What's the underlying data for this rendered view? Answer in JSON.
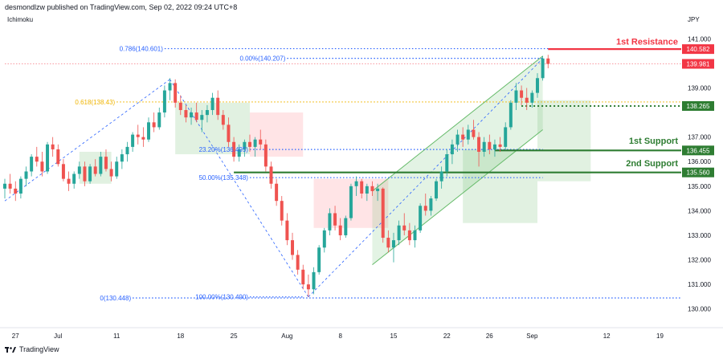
{
  "header": {
    "published": "desmondlzw published on TradingView.com, Sep 02, 2022 09:24 UTC+8"
  },
  "indicator": {
    "label": "Ichimoku"
  },
  "footer": {
    "brand": "TradingView"
  },
  "colors": {
    "up": "#26a69a",
    "down": "#ef5350",
    "resistance": "#f23645",
    "support": "#2e7d32",
    "fib": "#2962ff",
    "fib618": "#f0b400",
    "channel": "#66bb6a",
    "cloud_green": "#c8e6c9",
    "cloud_red": "#ffcdd2"
  },
  "chart_data": {
    "type": "candlestick",
    "symbol_unit": "JPY",
    "ylim": [
      129.5,
      141.6
    ],
    "xlim": [
      0,
      127
    ],
    "x_ticks": [
      {
        "label": "27",
        "x": 2
      },
      {
        "label": "Jul",
        "x": 10
      },
      {
        "label": "11",
        "x": 21
      },
      {
        "label": "18",
        "x": 33
      },
      {
        "label": "25",
        "x": 43
      },
      {
        "label": "Aug",
        "x": 53
      },
      {
        "label": "8",
        "x": 63
      },
      {
        "label": "15",
        "x": 73
      },
      {
        "label": "22",
        "x": 83
      },
      {
        "label": "26",
        "x": 91
      },
      {
        "label": "Sep",
        "x": 99
      },
      {
        "label": "12",
        "x": 113
      },
      {
        "label": "19",
        "x": 123
      }
    ],
    "y_ticks": [
      {
        "label": "141.000",
        "value": 141.0
      },
      {
        "label": "139.000",
        "value": 139.0
      },
      {
        "label": "137.000",
        "value": 137.0
      },
      {
        "label": "136.000",
        "value": 136.0
      },
      {
        "label": "135.000",
        "value": 135.0
      },
      {
        "label": "134.000",
        "value": 134.0
      },
      {
        "label": "133.000",
        "value": 133.0
      },
      {
        "label": "132.000",
        "value": 132.0
      },
      {
        "label": "131.000",
        "value": 131.0
      },
      {
        "label": "130.000",
        "value": 130.0
      }
    ],
    "price_tags": [
      {
        "label": "140.582",
        "value": 140.582,
        "color": "#f23645"
      },
      {
        "label": "139.981",
        "value": 139.981,
        "color": "#f23645"
      },
      {
        "label": "138.265",
        "value": 138.265,
        "color": "#2e7d32"
      },
      {
        "label": "136.455",
        "value": 136.455,
        "color": "#2e7d32"
      },
      {
        "label": "135.560",
        "value": 135.56,
        "color": "#2e7d32"
      }
    ],
    "levels": [
      {
        "name": "1st Resistance",
        "value": 140.582,
        "style": "solid",
        "color": "#f23645",
        "x0": 102
      },
      {
        "name": "1st Support",
        "value": 136.455,
        "style": "solid",
        "color": "#2e7d32",
        "x0": 92
      },
      {
        "name": "2nd Support",
        "value": 135.56,
        "style": "solid",
        "color": "#2e7d32",
        "x0": 43
      },
      {
        "name": "",
        "value": 138.265,
        "style": "dotted",
        "color": "#2e7d32",
        "x0": 97
      }
    ],
    "fib_levels": [
      {
        "label": "0.786(140.601)",
        "value": 140.601,
        "color": "#2962ff",
        "x0": 30,
        "x1": 127
      },
      {
        "label": "0.00%(140.207)",
        "value": 140.207,
        "color": "#2962ff",
        "x0": 53,
        "x1": 101
      },
      {
        "label": "0.618(138.43)",
        "value": 138.43,
        "color": "#f0b400",
        "x0": 21,
        "x1": 127
      },
      {
        "label": "23.20%(136.495)",
        "value": 136.495,
        "color": "#2962ff",
        "x0": 46,
        "x1": 101
      },
      {
        "label": "50.00%(135.348)",
        "value": 135.348,
        "color": "#2962ff",
        "x0": 46,
        "x1": 101
      },
      {
        "label": "0(130.448)",
        "value": 130.448,
        "color": "#2962ff",
        "x0": 24,
        "x1": 127
      },
      {
        "label": "100.00%(130.490)",
        "value": 130.49,
        "color": "#2962ff",
        "x0": 46,
        "x1": 56
      }
    ],
    "candles_ohlc": [
      [
        134.9,
        135.3,
        134.5,
        135.1
      ],
      [
        135.1,
        135.5,
        134.7,
        134.9
      ],
      [
        134.9,
        135.2,
        134.4,
        134.7
      ],
      [
        134.7,
        135.4,
        134.5,
        135.3
      ],
      [
        135.3,
        135.8,
        135.0,
        135.6
      ],
      [
        135.6,
        136.3,
        135.4,
        136.2
      ],
      [
        136.2,
        136.6,
        135.8,
        136.0
      ],
      [
        136.0,
        136.4,
        135.4,
        135.6
      ],
      [
        135.6,
        136.8,
        135.5,
        136.7
      ],
      [
        136.7,
        137.0,
        136.2,
        136.5
      ],
      [
        136.5,
        136.7,
        135.8,
        135.9
      ],
      [
        135.9,
        136.1,
        135.2,
        135.3
      ],
      [
        135.3,
        135.6,
        134.8,
        135.1
      ],
      [
        135.1,
        135.6,
        134.9,
        135.5
      ],
      [
        135.5,
        136.0,
        135.3,
        135.8
      ],
      [
        135.8,
        136.0,
        135.0,
        135.2
      ],
      [
        135.2,
        135.9,
        135.1,
        135.8
      ],
      [
        135.8,
        136.1,
        135.4,
        135.5
      ],
      [
        135.5,
        136.4,
        135.4,
        136.2
      ],
      [
        136.2,
        136.5,
        135.6,
        135.7
      ],
      [
        135.7,
        136.0,
        135.2,
        135.4
      ],
      [
        135.4,
        136.2,
        135.3,
        136.0
      ],
      [
        136.0,
        136.5,
        135.7,
        136.3
      ],
      [
        136.3,
        136.8,
        136.0,
        136.6
      ],
      [
        136.6,
        137.2,
        136.4,
        137.1
      ],
      [
        137.1,
        137.5,
        136.7,
        137.0
      ],
      [
        137.0,
        137.4,
        136.6,
        136.9
      ],
      [
        136.9,
        137.8,
        136.8,
        137.6
      ],
      [
        137.6,
        138.0,
        137.2,
        137.4
      ],
      [
        137.4,
        138.2,
        137.3,
        138.0
      ],
      [
        138.0,
        139.1,
        137.8,
        138.9
      ],
      [
        138.9,
        139.4,
        138.5,
        139.2
      ],
      [
        139.2,
        139.35,
        138.2,
        138.4
      ],
      [
        138.4,
        138.7,
        137.9,
        138.1
      ],
      [
        138.1,
        138.3,
        137.6,
        137.8
      ],
      [
        137.8,
        138.2,
        137.5,
        138.0
      ],
      [
        138.0,
        138.4,
        137.6,
        137.7
      ],
      [
        137.7,
        138.1,
        137.2,
        137.9
      ],
      [
        137.9,
        138.3,
        137.6,
        138.1
      ],
      [
        138.1,
        138.8,
        137.9,
        138.6
      ],
      [
        138.6,
        138.9,
        137.7,
        137.9
      ],
      [
        137.9,
        138.1,
        137.3,
        137.5
      ],
      [
        137.5,
        137.8,
        136.6,
        136.8
      ],
      [
        136.8,
        137.0,
        136.0,
        136.2
      ],
      [
        136.2,
        136.7,
        136.0,
        136.5
      ],
      [
        136.5,
        136.9,
        136.2,
        136.8
      ],
      [
        136.8,
        137.1,
        136.4,
        136.6
      ],
      [
        136.6,
        137.0,
        136.2,
        136.9
      ],
      [
        136.9,
        137.3,
        136.5,
        136.7
      ],
      [
        136.7,
        136.9,
        135.6,
        135.8
      ],
      [
        135.8,
        136.0,
        134.9,
        135.1
      ],
      [
        135.1,
        135.3,
        134.2,
        134.4
      ],
      [
        134.4,
        134.6,
        133.4,
        133.6
      ],
      [
        133.6,
        133.9,
        132.6,
        132.8
      ],
      [
        132.8,
        133.1,
        132.0,
        132.2
      ],
      [
        132.2,
        132.4,
        131.4,
        131.6
      ],
      [
        131.6,
        131.8,
        130.8,
        131.0
      ],
      [
        131.0,
        131.4,
        130.49,
        130.8
      ],
      [
        130.8,
        131.7,
        130.6,
        131.5
      ],
      [
        131.5,
        132.6,
        131.4,
        132.5
      ],
      [
        132.5,
        133.3,
        132.3,
        133.2
      ],
      [
        133.2,
        134.1,
        133.0,
        133.9
      ],
      [
        133.9,
        134.2,
        133.2,
        133.4
      ],
      [
        133.4,
        133.7,
        132.8,
        133.0
      ],
      [
        133.0,
        133.8,
        132.9,
        133.7
      ],
      [
        133.7,
        135.1,
        133.6,
        135.0
      ],
      [
        135.0,
        135.4,
        134.6,
        135.2
      ],
      [
        135.2,
        135.3,
        134.5,
        134.7
      ],
      [
        134.7,
        135.1,
        134.4,
        135.0
      ],
      [
        135.0,
        135.2,
        134.6,
        134.8
      ],
      [
        134.8,
        135.1,
        134.4,
        134.9
      ],
      [
        134.9,
        134.95,
        132.7,
        132.9
      ],
      [
        132.9,
        133.2,
        132.3,
        132.5
      ],
      [
        132.5,
        133.1,
        131.9,
        132.8
      ],
      [
        132.8,
        133.6,
        132.6,
        133.4
      ],
      [
        133.4,
        133.9,
        133.0,
        133.2
      ],
      [
        133.2,
        133.5,
        132.6,
        132.8
      ],
      [
        132.8,
        133.4,
        132.5,
        133.2
      ],
      [
        133.2,
        134.3,
        133.1,
        134.2
      ],
      [
        134.2,
        134.7,
        133.8,
        134.0
      ],
      [
        134.0,
        134.6,
        133.8,
        134.5
      ],
      [
        134.5,
        135.3,
        134.4,
        135.2
      ],
      [
        135.2,
        135.8,
        134.9,
        135.6
      ],
      [
        135.6,
        136.5,
        135.4,
        136.3
      ],
      [
        136.3,
        136.9,
        135.9,
        136.7
      ],
      [
        136.7,
        137.3,
        136.4,
        137.1
      ],
      [
        137.1,
        137.4,
        136.6,
        136.9
      ],
      [
        136.9,
        137.5,
        136.7,
        137.3
      ],
      [
        137.3,
        137.7,
        136.9,
        137.0
      ],
      [
        137.0,
        137.2,
        135.8,
        136.4
      ],
      [
        136.4,
        137.0,
        136.2,
        136.8
      ],
      [
        136.8,
        137.1,
        136.3,
        136.5
      ],
      [
        136.5,
        136.9,
        136.2,
        136.7
      ],
      [
        136.7,
        137.0,
        136.4,
        136.6
      ],
      [
        136.6,
        137.6,
        136.5,
        137.4
      ],
      [
        137.4,
        138.5,
        137.3,
        138.4
      ],
      [
        138.4,
        139.2,
        138.1,
        138.9
      ],
      [
        138.9,
        139.1,
        138.3,
        138.6
      ],
      [
        138.6,
        139.0,
        138.1,
        138.4
      ],
      [
        138.4,
        138.9,
        138.2,
        138.8
      ],
      [
        138.8,
        139.6,
        138.6,
        139.4
      ],
      [
        139.4,
        140.3,
        139.3,
        140.2
      ],
      [
        140.2,
        140.35,
        139.8,
        139.98
      ]
    ],
    "ichimoku_cloud": [
      {
        "x0": 14,
        "x1": 20,
        "low": 135.1,
        "high": 136.4,
        "color": "green"
      },
      {
        "x0": 32,
        "x1": 46,
        "low": 136.3,
        "high": 138.4,
        "color": "green"
      },
      {
        "x0": 46,
        "x1": 56,
        "low": 136.2,
        "high": 138.0,
        "color": "red"
      },
      {
        "x0": 58,
        "x1": 72,
        "low": 133.3,
        "high": 135.3,
        "color": "red"
      },
      {
        "x0": 86,
        "x1": 100,
        "low": 133.5,
        "high": 136.5,
        "color": "green"
      },
      {
        "x0": 100,
        "x1": 110,
        "low": 135.2,
        "high": 138.5,
        "color": "green"
      }
    ],
    "channel": {
      "x0": 69,
      "x1": 101,
      "lower_start": 131.8,
      "lower_end": 137.3,
      "upper_start": 134.8,
      "upper_end": 140.3
    },
    "annotations": [
      {
        "text": "1st Resistance",
        "value": 140.9,
        "color": "#f23645"
      },
      {
        "text": "1st Support",
        "value": 136.85,
        "color": "#2e7d32"
      },
      {
        "text": "2nd Support",
        "value": 135.95,
        "color": "#2e7d32"
      }
    ]
  }
}
